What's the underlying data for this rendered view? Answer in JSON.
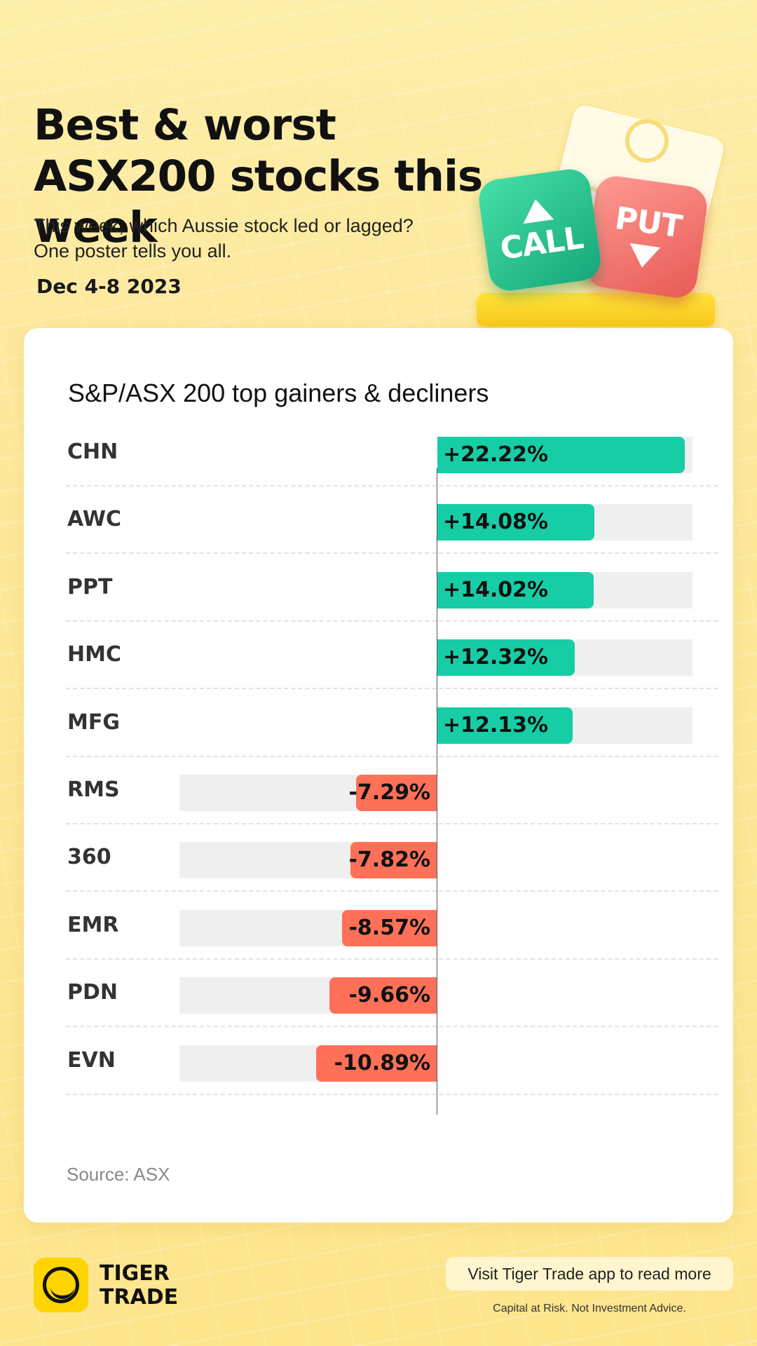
{
  "header": {
    "title": "Best & worst ASX200 stocks this week",
    "subtitle_line1": "This week, which Aussie stock led or lagged?",
    "subtitle_line2": "One poster tells you all.",
    "date": "Dec 4-8 2023"
  },
  "illustration": {
    "call_label": "CALL",
    "put_label": "PUT"
  },
  "chart_data": {
    "type": "bar",
    "orientation": "horizontal",
    "title": "S&P/ASX 200 top gainers & decliners",
    "unit": "%",
    "categories": [
      "CHN",
      "AWC",
      "PPT",
      "HMC",
      "MFG",
      "RMS",
      "360",
      "EMR",
      "PDN",
      "EVN"
    ],
    "values": [
      22.22,
      14.08,
      14.02,
      12.32,
      12.13,
      -7.29,
      -7.82,
      -8.57,
      -9.66,
      -10.89
    ],
    "labels": [
      "+22.22%",
      "+14.08%",
      "+14.02%",
      "+12.32%",
      "+12.13%",
      "-7.29%",
      "-7.82%",
      "-8.57%",
      "-9.66%",
      "-10.89%"
    ],
    "xlim": [
      -25,
      25
    ],
    "colors": {
      "positive": "#17cda6",
      "negative": "#fe7158",
      "track": "#efefef"
    },
    "source": "Source: ASX"
  },
  "footer": {
    "brand_line1": "TIGER",
    "brand_line2": "TRADE",
    "cta": "Visit Tiger Trade app to read more",
    "disclaimer": "Capital at Risk. Not Investment Advice."
  }
}
